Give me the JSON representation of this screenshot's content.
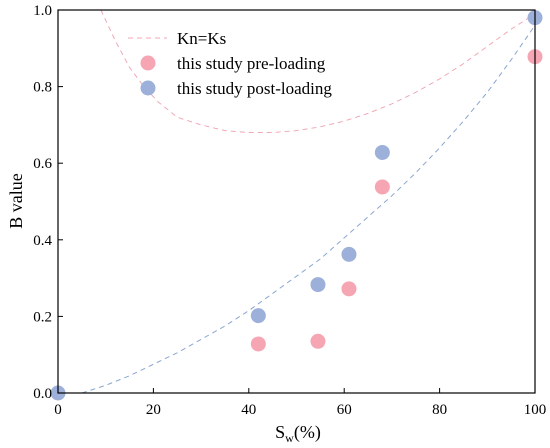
{
  "chart_data": {
    "type": "scatter",
    "xlabel_main": "S",
    "xlabel_sub": "w",
    "xlabel_unit": "(%)",
    "ylabel": "B value",
    "xlim": [
      0,
      100
    ],
    "ylim": [
      0,
      1.0
    ],
    "x_ticks": [
      0,
      20,
      40,
      60,
      80,
      100
    ],
    "y_ticks": [
      0.0,
      0.2,
      0.4,
      0.6,
      0.8,
      1.0
    ],
    "x_tick_labels": [
      "0",
      "20",
      "40",
      "60",
      "80",
      "100"
    ],
    "y_tick_labels": [
      "0.0",
      "0.2",
      "0.4",
      "0.6",
      "0.8",
      "1.0"
    ],
    "grid": false,
    "legend_position": "top",
    "series": [
      {
        "name": "Kn=Ks",
        "kind": "dashed-line",
        "color": "#f0a8b4",
        "x": [
          9,
          12,
          15,
          18,
          21,
          25,
          30,
          35,
          40,
          45,
          50,
          55,
          60,
          65,
          70,
          75,
          80,
          85,
          90,
          95,
          100
        ],
        "y": [
          1.0,
          0.92,
          0.85,
          0.8,
          0.76,
          0.72,
          0.7,
          0.685,
          0.68,
          0.68,
          0.685,
          0.695,
          0.71,
          0.73,
          0.755,
          0.785,
          0.82,
          0.86,
          0.905,
          0.95,
          0.99
        ]
      },
      {
        "name": "",
        "kind": "dashed-line",
        "color": "#8aa6d0",
        "x": [
          5,
          10,
          15,
          20,
          25,
          30,
          35,
          40,
          45,
          50,
          55,
          60,
          65,
          70,
          75,
          80,
          85,
          90,
          95,
          100
        ],
        "y": [
          0.0,
          0.02,
          0.045,
          0.075,
          0.105,
          0.14,
          0.175,
          0.215,
          0.26,
          0.305,
          0.35,
          0.405,
          0.46,
          0.515,
          0.575,
          0.64,
          0.71,
          0.785,
          0.87,
          0.96
        ]
      },
      {
        "name": "this study pre-loading",
        "kind": "marker",
        "color": "#f6a5b3",
        "x": [
          42,
          54.5,
          61,
          68,
          100
        ],
        "y": [
          0.128,
          0.135,
          0.272,
          0.538,
          0.878
        ]
      },
      {
        "name": "this study post-loading",
        "kind": "marker",
        "color": "#9db0da",
        "x": [
          0,
          42,
          54.5,
          61,
          68,
          100
        ],
        "y": [
          0.0,
          0.202,
          0.283,
          0.362,
          0.628,
          0.98
        ]
      }
    ]
  }
}
